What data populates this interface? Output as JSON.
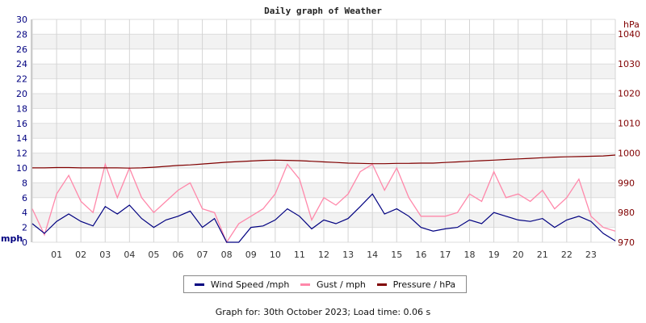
{
  "chart_data": {
    "type": "line",
    "title": "Daily graph of Weather",
    "xlabel": "",
    "ylabel": "mph",
    "ylabel_right": "hPa",
    "ylim": [
      0,
      30
    ],
    "ylim_right": [
      970,
      1040
    ],
    "grid": true,
    "legend_position": "bottom",
    "x_ticks": [
      "01",
      "02",
      "03",
      "04",
      "05",
      "06",
      "07",
      "08",
      "09",
      "10",
      "11",
      "12",
      "13",
      "14",
      "15",
      "16",
      "17",
      "18",
      "19",
      "20",
      "21",
      "22",
      "23"
    ],
    "y_ticks_left": [
      0,
      2,
      4,
      6,
      8,
      10,
      12,
      14,
      16,
      18,
      20,
      22,
      24,
      26,
      28,
      30
    ],
    "y_ticks_right": [
      970,
      980,
      990,
      1000,
      1010,
      1020,
      1030,
      1040
    ],
    "x_hours": [
      0,
      0.5,
      1,
      1.5,
      2,
      2.5,
      3,
      3.5,
      4,
      4.5,
      5,
      5.5,
      6,
      6.5,
      7,
      7.5,
      8,
      8.5,
      9,
      9.5,
      10,
      10.5,
      11,
      11.5,
      12,
      12.5,
      13,
      13.5,
      14,
      14.5,
      15,
      15.5,
      16,
      16.5,
      17,
      17.5,
      18,
      18.5,
      19,
      19.5,
      20,
      20.5,
      21,
      21.5,
      22,
      22.5,
      23,
      23.5,
      24
    ],
    "series": [
      {
        "name": "Wind Speed /mph",
        "axis": "left",
        "color": "#000080",
        "values": [
          2.5,
          1.2,
          2.8,
          3.8,
          2.8,
          2.2,
          4.8,
          3.8,
          5.0,
          3.2,
          2.0,
          3.0,
          3.5,
          4.2,
          2.0,
          3.2,
          0.0,
          0.0,
          2.0,
          2.2,
          3.0,
          4.5,
          3.5,
          1.8,
          3.0,
          2.5,
          3.2,
          4.8,
          6.5,
          3.8,
          4.5,
          3.5,
          2.0,
          1.5,
          1.8,
          2.0,
          3.0,
          2.5,
          4.0,
          3.5,
          3.0,
          2.8,
          3.2,
          2.0,
          3.0,
          3.5,
          2.8,
          1.2,
          0.2
        ]
      },
      {
        "name": "Gust / mph",
        "axis": "left",
        "color": "#ff88aa",
        "values": [
          4.5,
          1.0,
          6.5,
          9.0,
          5.5,
          4.0,
          10.5,
          6.0,
          10.0,
          6.0,
          4.0,
          5.5,
          7.0,
          8.0,
          4.5,
          4.0,
          0.0,
          2.5,
          3.5,
          4.5,
          6.5,
          10.5,
          8.5,
          3.0,
          6.0,
          5.0,
          6.5,
          9.5,
          10.5,
          7.0,
          10.0,
          6.0,
          3.5,
          3.5,
          3.5,
          4.0,
          6.5,
          5.5,
          9.5,
          6.0,
          6.5,
          5.5,
          7.0,
          4.5,
          6.0,
          8.5,
          3.5,
          2.0,
          1.5
        ]
      },
      {
        "name": "Pressure / hPa",
        "axis": "right",
        "color": "#800000",
        "values": [
          995.0,
          995.0,
          995.1,
          995.1,
          995.0,
          995.0,
          995.0,
          995.0,
          994.9,
          995.0,
          995.2,
          995.5,
          995.8,
          996.0,
          996.3,
          996.6,
          996.9,
          997.1,
          997.3,
          997.5,
          997.6,
          997.5,
          997.4,
          997.2,
          997.0,
          996.8,
          996.6,
          996.5,
          996.4,
          996.4,
          996.5,
          996.5,
          996.6,
          996.6,
          996.8,
          997.0,
          997.2,
          997.4,
          997.6,
          997.8,
          998.0,
          998.2,
          998.4,
          998.6,
          998.7,
          998.8,
          998.9,
          999.0,
          999.3
        ]
      }
    ]
  },
  "legend": {
    "items": [
      {
        "label": "Wind Speed /mph",
        "color": "#000080"
      },
      {
        "label": "Gust / mph",
        "color": "#ff88aa"
      },
      {
        "label": "Pressure / hPa",
        "color": "#800000"
      }
    ]
  },
  "footer": {
    "text": "Graph for: 30th October 2023; Load time: 0.06 s"
  }
}
